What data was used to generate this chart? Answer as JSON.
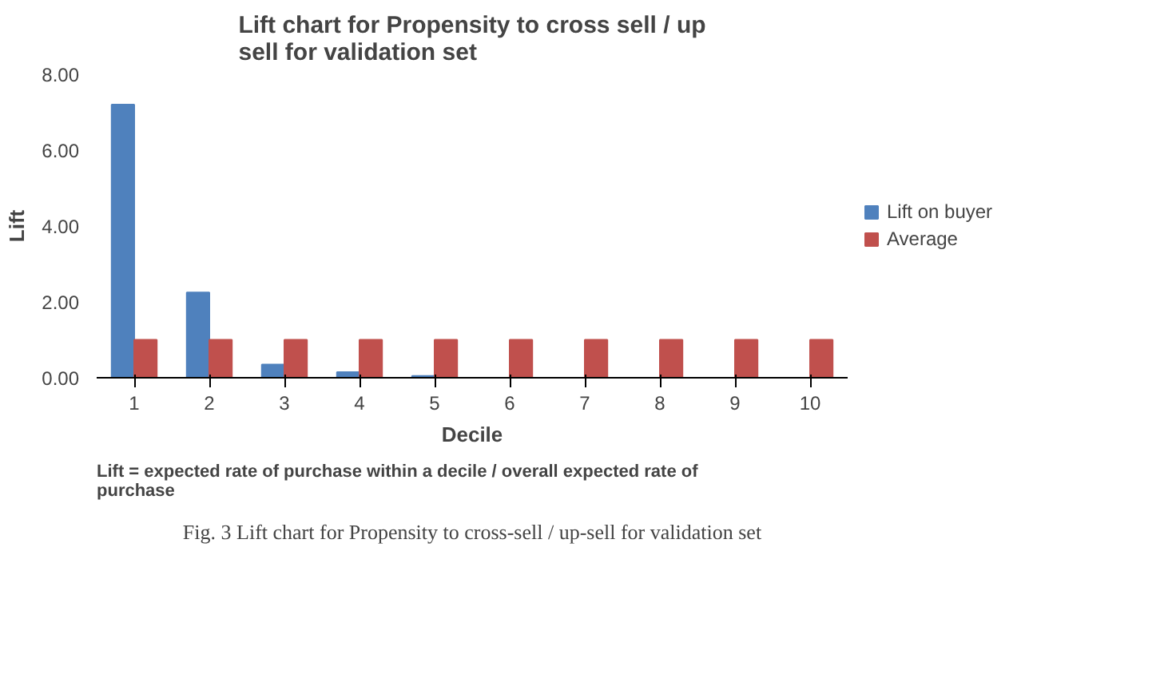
{
  "chart_data": {
    "type": "bar",
    "title": "Lift chart for Propensity to cross sell / up sell for validation set",
    "xlabel": "Decile",
    "ylabel": "Lift",
    "categories": [
      "1",
      "2",
      "3",
      "4",
      "5",
      "6",
      "7",
      "8",
      "9",
      "10"
    ],
    "series": [
      {
        "name": "Lift on buyer",
        "color": "#4f81bd",
        "values": [
          7.2,
          2.25,
          0.35,
          0.15,
          0.05,
          0,
          0,
          0,
          0,
          0
        ]
      },
      {
        "name": "Average",
        "color": "#c0504d",
        "values": [
          1,
          1,
          1,
          1,
          1,
          1,
          1,
          1,
          1,
          1
        ]
      }
    ],
    "ylim": [
      0,
      8
    ],
    "yticks": [
      {
        "value": 0,
        "label": "0.00"
      },
      {
        "value": 2,
        "label": "2.00"
      },
      {
        "value": 4,
        "label": "4.00"
      },
      {
        "value": 6,
        "label": "6.00"
      },
      {
        "value": 8,
        "label": "8.00"
      }
    ],
    "grid": false,
    "legend": "right",
    "annotations": [
      "Lift = expected rate of purchase within a decile / overall expected rate of purchase",
      "Fig. 3 Lift chart for Propensity to cross-sell / up-sell for validation set"
    ]
  }
}
